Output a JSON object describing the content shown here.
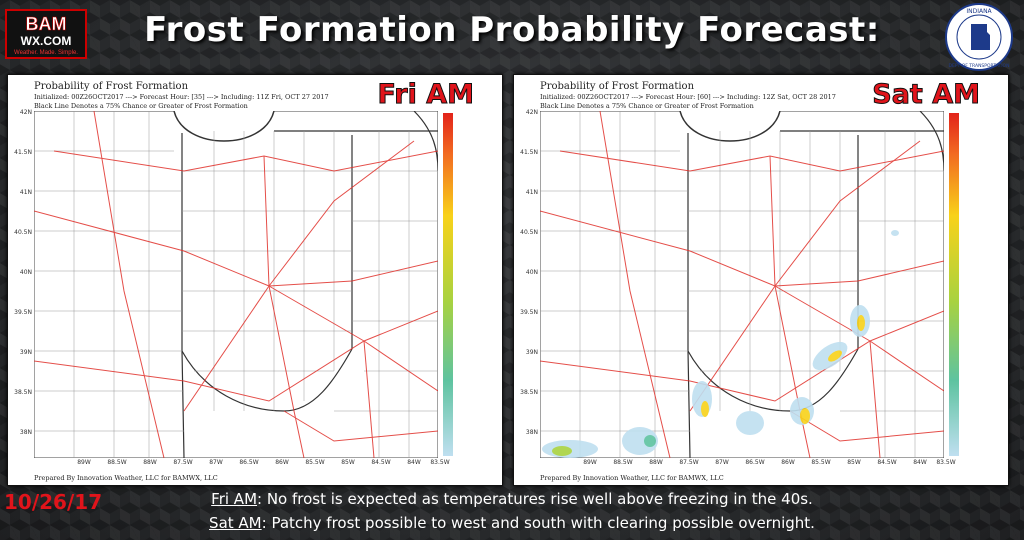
{
  "header": {
    "title": "Frost Formation Probability Forecast:",
    "logo_text": "BAM WX.COM",
    "logo_tagline": "Weather. Made. Simple.",
    "seal_text": "INDIANA DEPARTMENT OF TRANSPORTATION"
  },
  "panels": [
    {
      "title": "Probability of Frost Formation",
      "line2": "Initialized: 00Z26OCT2017 ---> Forecast Hour: [35] ---> Including: 11Z Fri, OCT 27 2017",
      "line3": "Black Line Denotes a 75% Chance or Greater of Frost Formation",
      "badge": "Fri AM",
      "credit": "Prepared By Innovation Weather, LLC for BAMWX, LLC"
    },
    {
      "title": "Probability of Frost Formation",
      "line2": "Initialized: 00Z26OCT2017 ---> Forecast Hour: [60] ---> Including: 12Z Sat, OCT 28 2017",
      "line3": "Black Line Denotes a 75% Chance or Greater of Frost Formation",
      "badge": "Sat AM",
      "credit": "Prepared By Innovation Weather, LLC for BAMWX, LLC"
    }
  ],
  "axes": {
    "lat": [
      "42N",
      "41.5N",
      "41N",
      "40.5N",
      "40N",
      "39.5N",
      "39N",
      "38.5N",
      "38N"
    ],
    "lon": [
      "89W",
      "88.5W",
      "88W",
      "87.5W",
      "87W",
      "86.5W",
      "86W",
      "85.5W",
      "85W",
      "84.5W",
      "84W",
      "83.5W"
    ]
  },
  "colorbar": [
    "#e2231a",
    "#f26b21",
    "#f8d21a",
    "#a8d240",
    "#5ec3a0",
    "#bfdff0"
  ],
  "footer": {
    "date": "10/26/17",
    "line1_label": "Fri AM",
    "line1_text": ": No frost is expected as temperatures rise well above freezing in the 40s.",
    "line2_label": "Sat AM",
    "line2_text": ": Patchy frost possible to west and south with clearing possible overnight."
  }
}
